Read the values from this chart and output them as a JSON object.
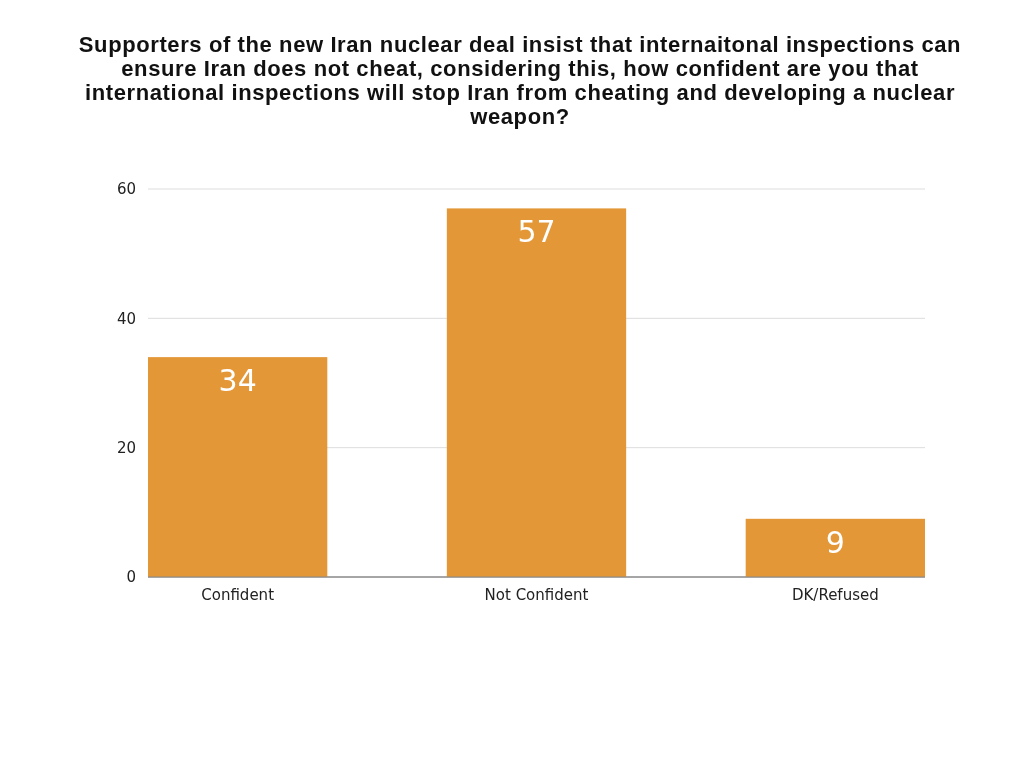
{
  "chart_data": {
    "type": "bar",
    "title": "Supporters of the new Iran nuclear deal insist that internaitonal inspections can ensure Iran does not cheat, considering this, how confident are you that international inspections will stop Iran from cheating and developing a nuclear weapon?",
    "categories": [
      "Confident",
      "Not Confident",
      "DK/Refused"
    ],
    "values": [
      34,
      57,
      9
    ],
    "color": "#e39737",
    "ylim": [
      0,
      60
    ],
    "yticks": [
      0,
      20,
      40,
      60
    ],
    "grid": "y",
    "data_labels": true
  }
}
